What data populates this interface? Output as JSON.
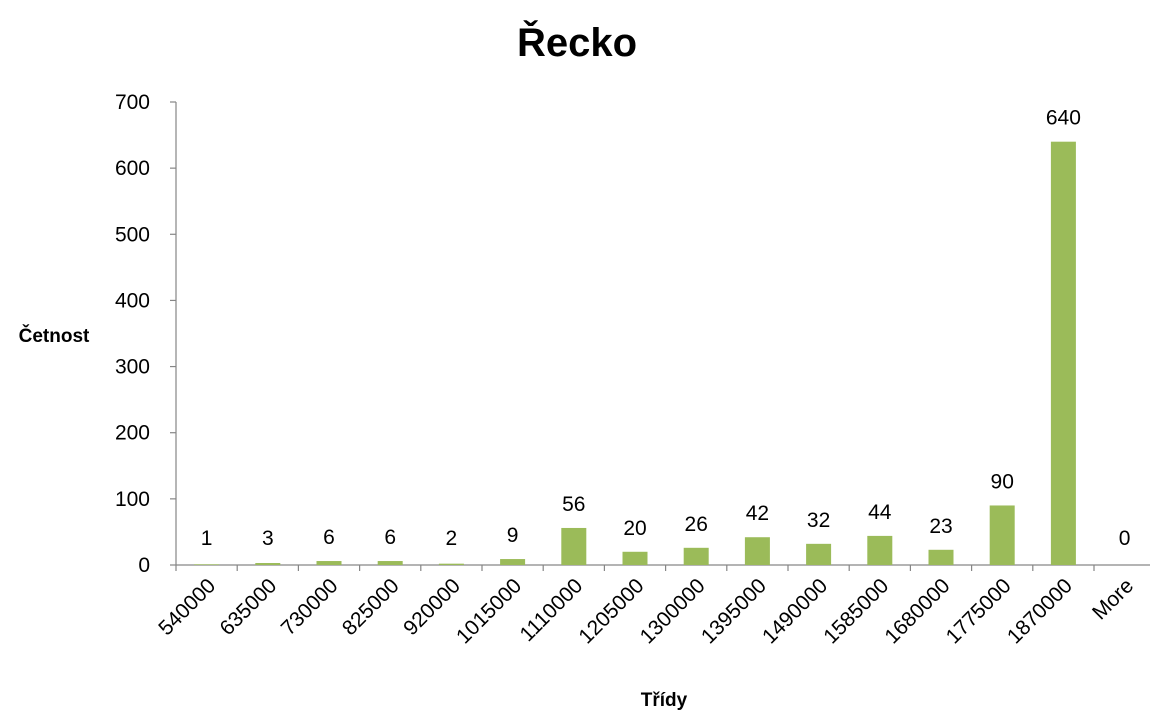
{
  "chart_data": {
    "type": "bar",
    "title": "Řecko",
    "xlabel": "Třídy",
    "ylabel": "Četnost",
    "categories": [
      "540000",
      "635000",
      "730000",
      "825000",
      "920000",
      "1015000",
      "1110000",
      "1205000",
      "1300000",
      "1395000",
      "1490000",
      "1585000",
      "1680000",
      "1775000",
      "1870000",
      "More"
    ],
    "values": [
      1,
      3,
      6,
      6,
      2,
      9,
      56,
      20,
      26,
      42,
      32,
      44,
      23,
      90,
      640,
      0
    ],
    "data_labels": [
      "1",
      "3",
      "6",
      "6",
      "2",
      "9",
      "56",
      "20",
      "26",
      "42",
      "32",
      "44",
      "23",
      "90",
      "640",
      "0"
    ],
    "yticks": [
      "0",
      "100",
      "200",
      "300",
      "400",
      "500",
      "600",
      "700"
    ],
    "ylim": [
      0,
      700
    ],
    "grid": false,
    "legend": "none",
    "bar_color": "#9BBB59"
  }
}
